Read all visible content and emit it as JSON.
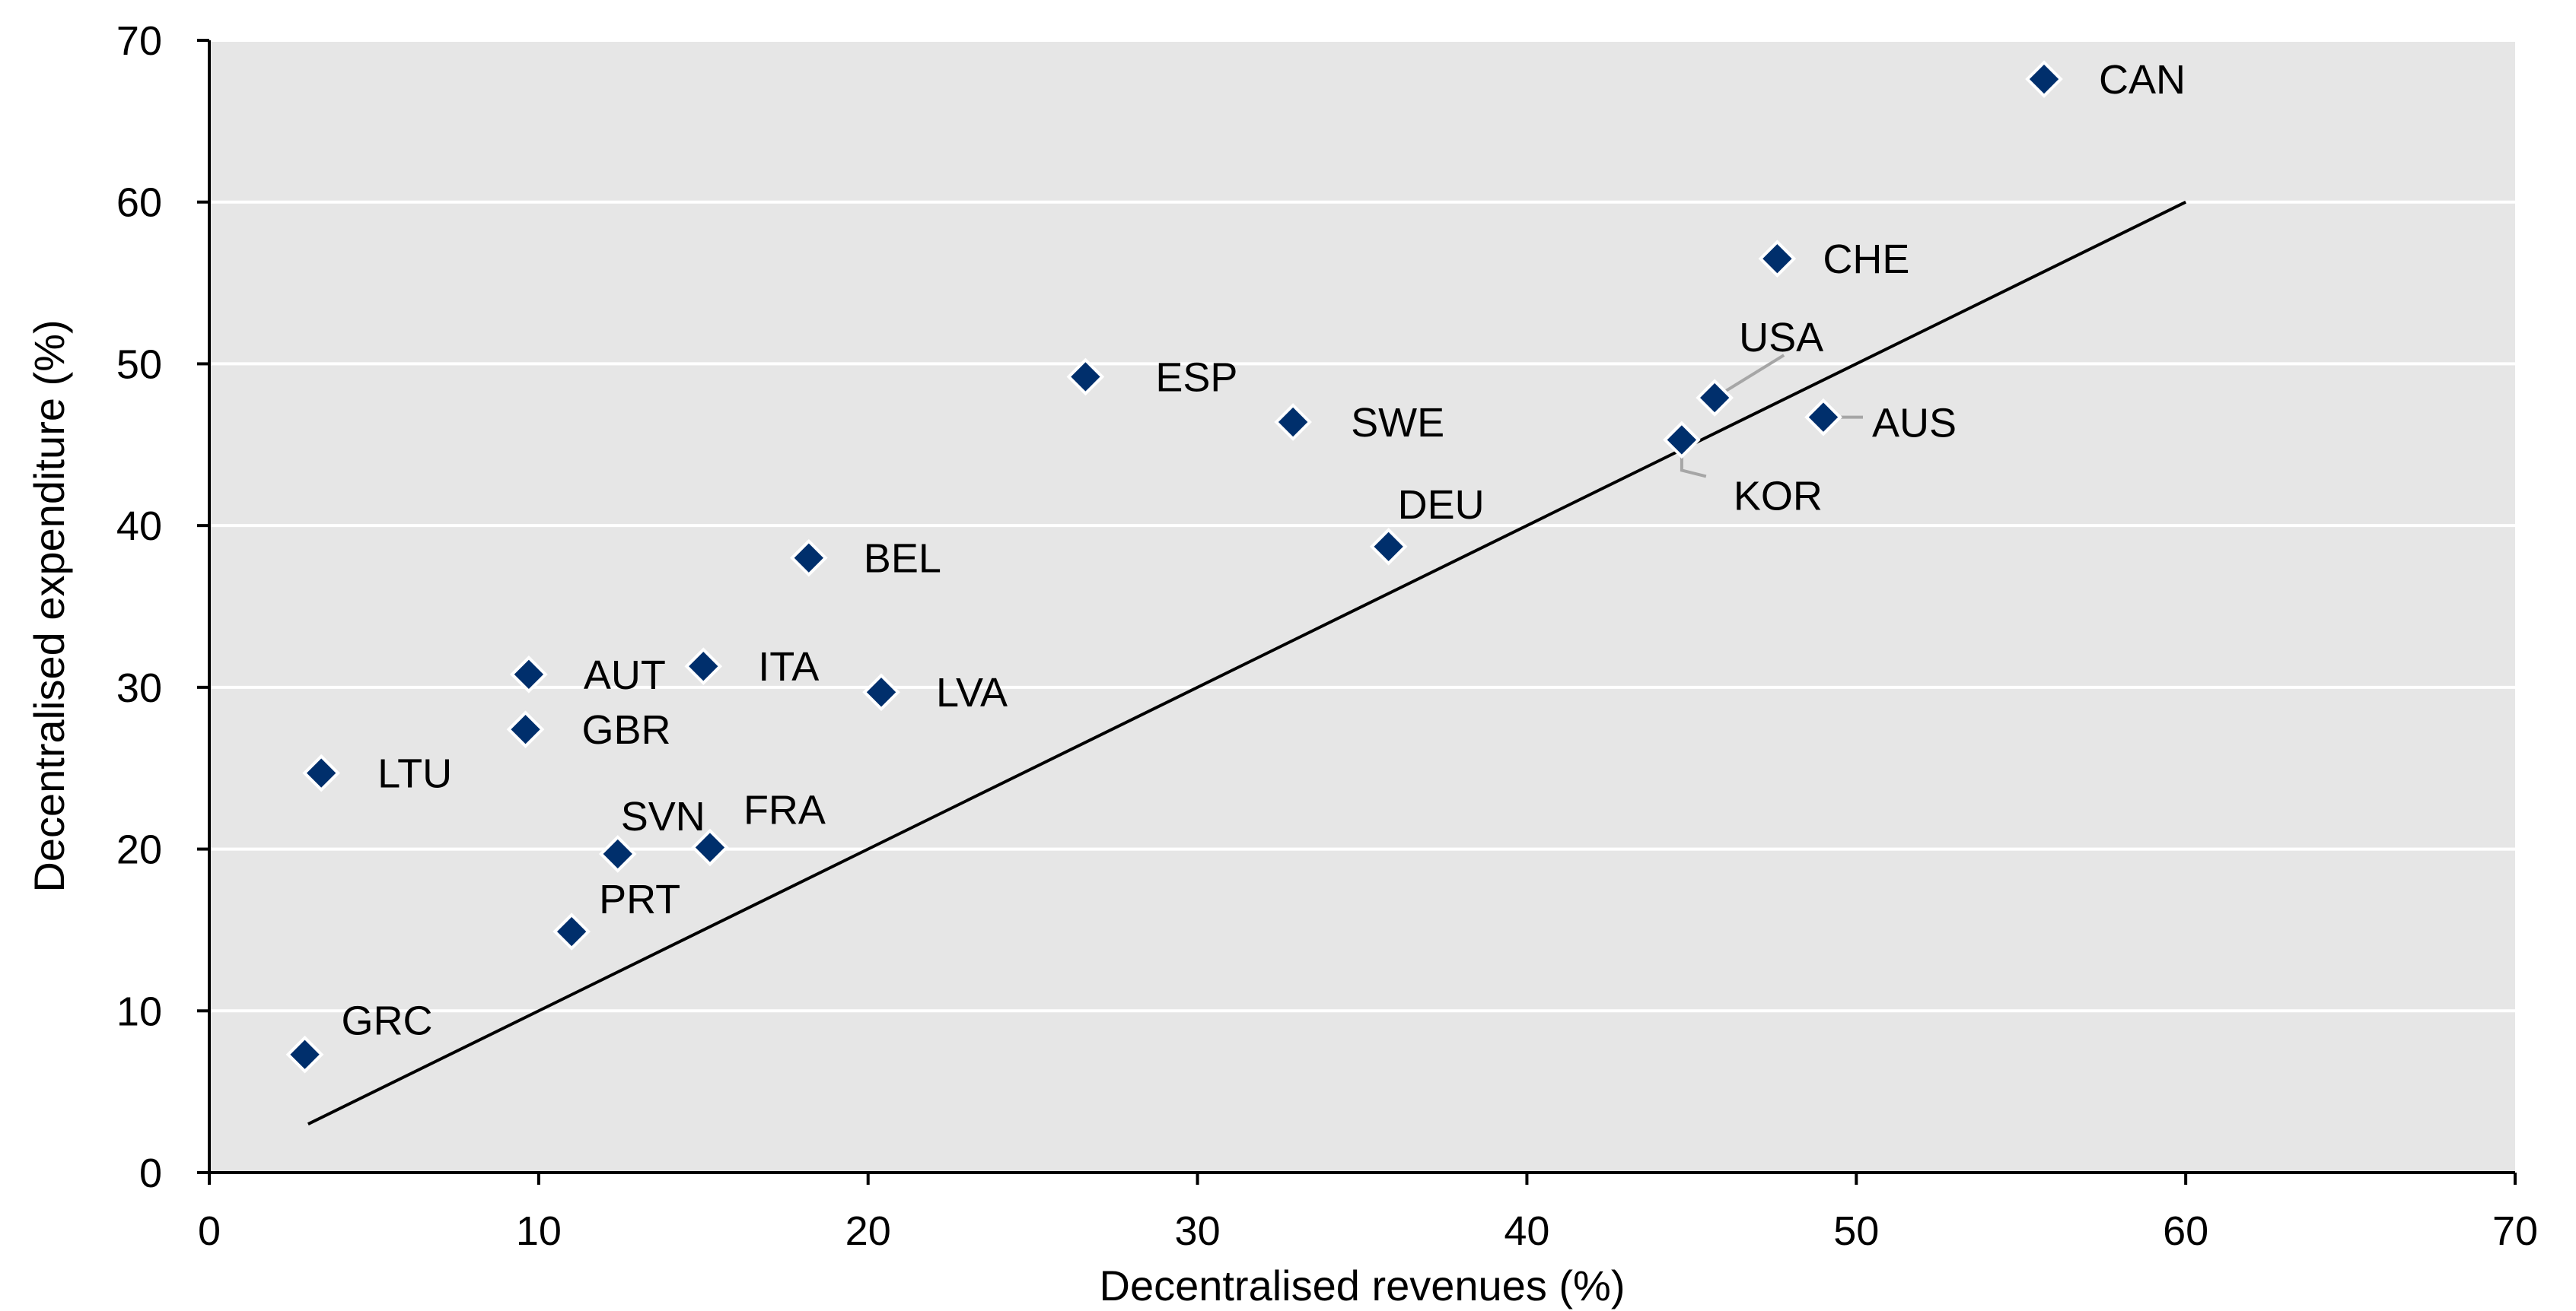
{
  "chart_data": {
    "type": "scatter",
    "title": "",
    "xlabel": "Decentralised revenues (%)",
    "ylabel": "Decentralised expenditure (%)",
    "xlim": [
      0,
      70
    ],
    "ylim": [
      0,
      70
    ],
    "xticks": [
      0,
      10,
      20,
      30,
      40,
      50,
      60,
      70
    ],
    "yticks": [
      0,
      10,
      20,
      30,
      40,
      50,
      60,
      70
    ],
    "grid": "horizontal",
    "colors": {
      "plot_bg": "#E6E6E6",
      "marker": "#002F6C",
      "marker_edge": "#FFFFFF",
      "line": "#000000",
      "leader": "#A6A6A6",
      "grid": "#FFFFFF"
    },
    "reference_line": {
      "x": [
        3,
        60
      ],
      "y": [
        3,
        60
      ]
    },
    "points": [
      {
        "label": "CAN",
        "x": 55.7,
        "y": 67.6
      },
      {
        "label": "CHE",
        "x": 47.6,
        "y": 56.5
      },
      {
        "label": "USA",
        "x": 45.7,
        "y": 47.9
      },
      {
        "label": "AUS",
        "x": 49.0,
        "y": 46.7
      },
      {
        "label": "KOR",
        "x": 44.7,
        "y": 45.3
      },
      {
        "label": "ESP",
        "x": 26.6,
        "y": 49.2
      },
      {
        "label": "SWE",
        "x": 32.9,
        "y": 46.4
      },
      {
        "label": "DEU",
        "x": 35.8,
        "y": 38.7
      },
      {
        "label": "BEL",
        "x": 18.2,
        "y": 38.0
      },
      {
        "label": "AUT",
        "x": 9.7,
        "y": 30.8
      },
      {
        "label": "ITA",
        "x": 15.0,
        "y": 31.3
      },
      {
        "label": "LVA",
        "x": 20.4,
        "y": 29.7
      },
      {
        "label": "GBR",
        "x": 9.6,
        "y": 27.4
      },
      {
        "label": "LTU",
        "x": 3.4,
        "y": 24.7
      },
      {
        "label": "SVN",
        "x": 12.4,
        "y": 19.7
      },
      {
        "label": "FRA",
        "x": 15.2,
        "y": 20.1
      },
      {
        "label": "PRT",
        "x": 11.0,
        "y": 14.9
      },
      {
        "label": "GRC",
        "x": 2.9,
        "y": 7.3
      }
    ]
  }
}
